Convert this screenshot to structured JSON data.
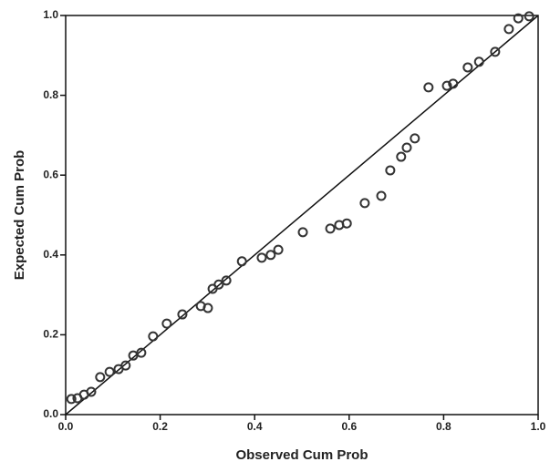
{
  "chart_data": {
    "type": "scatter",
    "x_label": "Observed Cum Prob",
    "y_label": "Expected Cum Prob",
    "x": [
      0.012,
      0.025,
      0.039,
      0.054,
      0.073,
      0.093,
      0.112,
      0.127,
      0.143,
      0.16,
      0.185,
      0.214,
      0.247,
      0.286,
      0.301,
      0.311,
      0.324,
      0.34,
      0.373,
      0.415,
      0.434,
      0.45,
      0.502,
      0.56,
      0.579,
      0.595,
      0.633,
      0.668,
      0.687,
      0.71,
      0.722,
      0.739,
      0.768,
      0.807,
      0.82,
      0.851,
      0.875,
      0.909,
      0.938,
      0.958,
      0.981
    ],
    "values": [
      0.039,
      0.041,
      0.05,
      0.057,
      0.094,
      0.107,
      0.114,
      0.123,
      0.148,
      0.155,
      0.196,
      0.228,
      0.251,
      0.272,
      0.267,
      0.315,
      0.326,
      0.336,
      0.384,
      0.393,
      0.4,
      0.413,
      0.457,
      0.466,
      0.475,
      0.479,
      0.53,
      0.548,
      0.612,
      0.646,
      0.669,
      0.692,
      0.82,
      0.824,
      0.829,
      0.87,
      0.884,
      0.909,
      0.966,
      0.993,
      0.998
    ],
    "color": "#333333",
    "xlim": [
      0,
      1
    ],
    "ylim": [
      0,
      1
    ],
    "xticks": [
      {
        "value": 0,
        "label": "0.0"
      },
      0.2,
      0.4,
      0.6,
      0.8,
      {
        "value": 1,
        "label": "1.0"
      }
    ],
    "yticks": [
      {
        "value": 0,
        "label": "0.0"
      },
      0.2,
      0.4,
      0.6,
      0.8,
      {
        "value": 1,
        "label": "1.0"
      }
    ],
    "reference_line": true
  }
}
